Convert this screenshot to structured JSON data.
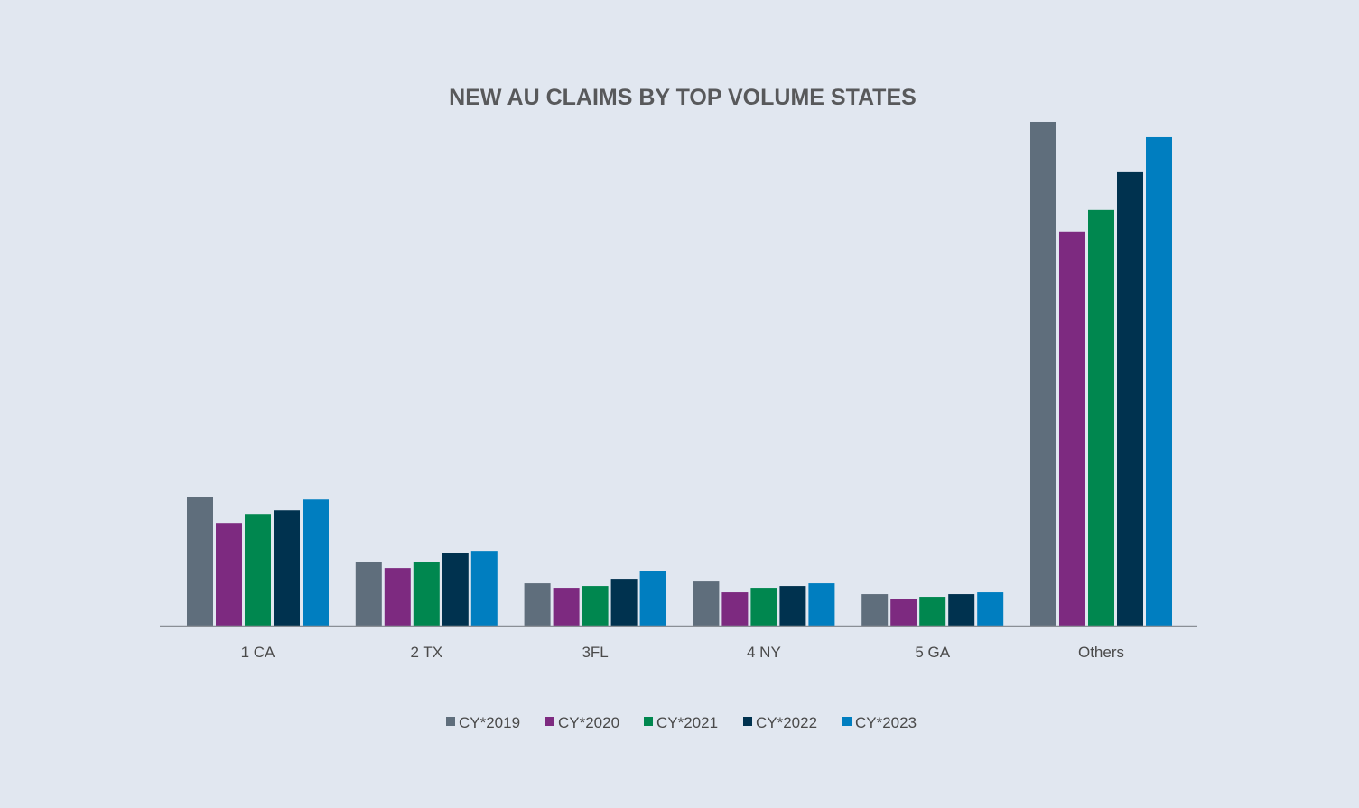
{
  "chart_data": {
    "type": "bar",
    "title": "NEW AU CLAIMS BY TOP VOLUME STATES",
    "xlabel": "",
    "ylabel": "",
    "ylim": [
      0,
      560
    ],
    "grid": false,
    "legend_position": "bottom",
    "value_note_units": "relative (no y-axis scale shown)",
    "categories": [
      "1 CA",
      "2 TX",
      "3FL",
      "4 NY",
      "5 GA",
      "Others"
    ],
    "series": [
      {
        "name": "CY*2019",
        "color": "#5f6e7c",
        "values": [
          143,
          71,
          47,
          49,
          35,
          559
        ]
      },
      {
        "name": "CY*2020",
        "color": "#7d2a80",
        "values": [
          114,
          64,
          42,
          37,
          30,
          437
        ]
      },
      {
        "name": "CY*2021",
        "color": "#00874f",
        "values": [
          124,
          71,
          44,
          42,
          32,
          461
        ]
      },
      {
        "name": "CY*2022",
        "color": "#00324f",
        "values": [
          128,
          81,
          52,
          44,
          35,
          504
        ]
      },
      {
        "name": "CY*2023",
        "color": "#007ec0",
        "values": [
          140,
          83,
          61,
          47,
          37,
          542
        ]
      }
    ]
  }
}
